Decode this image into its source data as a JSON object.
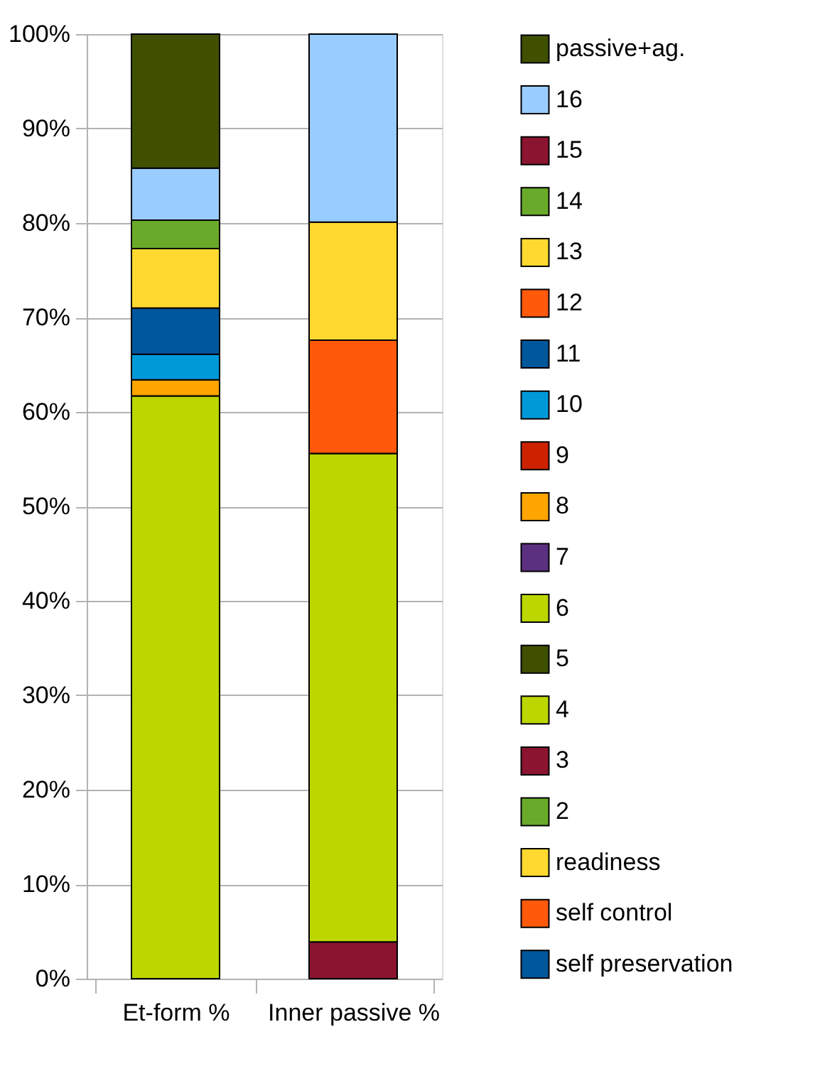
{
  "chart_data": {
    "type": "bar",
    "stacked": true,
    "categories": [
      "Et-form %",
      "Inner passive %"
    ],
    "series": [
      {
        "name": "self preservation",
        "color": "#00579c",
        "values": [
          null,
          null
        ]
      },
      {
        "name": "self control",
        "color": "#ff5a0c",
        "values": [
          null,
          null
        ]
      },
      {
        "name": "readiness",
        "color": "#ffd92f",
        "values": [
          null,
          null
        ]
      },
      {
        "name": "2",
        "color": "#6aaa2a",
        "values": [
          null,
          null
        ]
      },
      {
        "name": "3",
        "color": "#8b1530",
        "values": [
          null,
          3.9
        ]
      },
      {
        "name": "4",
        "color": "#bcd600",
        "values": [
          61.7,
          51.7
        ]
      },
      {
        "name": "5",
        "color": "#3f5000",
        "values": [
          null,
          null
        ]
      },
      {
        "name": "6",
        "color": "#bcd600",
        "values": [
          null,
          null
        ]
      },
      {
        "name": "7",
        "color": "#5c3080",
        "values": [
          null,
          null
        ]
      },
      {
        "name": "8",
        "color": "#ffa500",
        "values": [
          1.7,
          null
        ]
      },
      {
        "name": "9",
        "color": "#cc2200",
        "values": [
          null,
          null
        ]
      },
      {
        "name": "10",
        "color": "#0099d8",
        "values": [
          2.7,
          null
        ]
      },
      {
        "name": "11",
        "color": "#00579c",
        "values": [
          4.9,
          null
        ]
      },
      {
        "name": "12",
        "color": "#ff5a0c",
        "values": [
          null,
          12.0
        ]
      },
      {
        "name": "13",
        "color": "#ffd92f",
        "values": [
          6.3,
          12.5
        ]
      },
      {
        "name": "14",
        "color": "#6aaa2a",
        "values": [
          3.0,
          null
        ]
      },
      {
        "name": "15",
        "color": "#8b1530",
        "values": [
          null,
          null
        ]
      },
      {
        "name": "16",
        "color": "#99ccff",
        "values": [
          5.5,
          19.9
        ]
      },
      {
        "name": "passive+ag.",
        "color": "#3f5000",
        "values": [
          14.2,
          null
        ]
      }
    ],
    "ylim": [
      0,
      100
    ],
    "yticks": [
      {
        "value": 0,
        "label": "0%"
      },
      {
        "value": 10,
        "label": "10%"
      },
      {
        "value": 20,
        "label": "20%"
      },
      {
        "value": 30,
        "label": "30%"
      },
      {
        "value": 40,
        "label": "40%"
      },
      {
        "value": 50,
        "label": "50%"
      },
      {
        "value": 60,
        "label": "60%"
      },
      {
        "value": 70,
        "label": "70%"
      },
      {
        "value": 80,
        "label": "80%"
      },
      {
        "value": 90,
        "label": "90%"
      },
      {
        "value": 100,
        "label": "100%"
      }
    ],
    "grid": "y",
    "legend": "right"
  }
}
